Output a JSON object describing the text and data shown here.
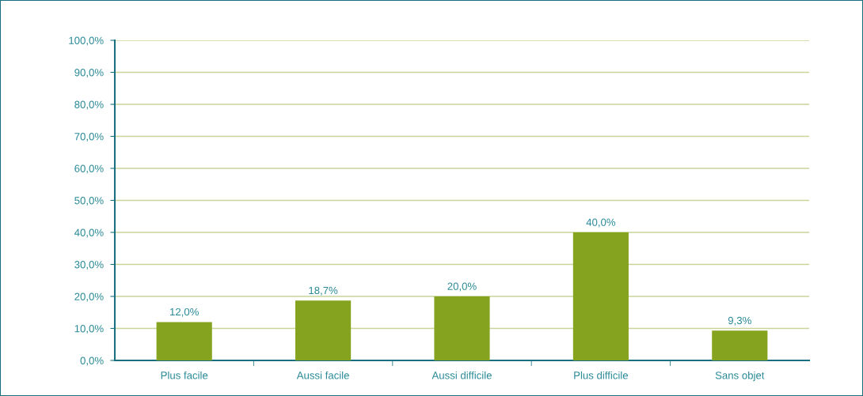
{
  "chart_data": {
    "type": "bar",
    "categories": [
      "Plus facile",
      "Aussi facile",
      "Aussi difficile",
      "Plus difficile",
      "Sans objet"
    ],
    "values": [
      12.0,
      18.7,
      20.0,
      40.0,
      9.3
    ],
    "value_labels": [
      "12,0%",
      "18,7%",
      "20,0%",
      "40,0%",
      "9,3%"
    ],
    "color": "#86a31f",
    "ylim": [
      0,
      100
    ],
    "yticks": [
      {
        "value": 0,
        "label": "0,0%"
      },
      {
        "value": 10,
        "label": "10,0%"
      },
      {
        "value": 20,
        "label": "20,0%"
      },
      {
        "value": 30,
        "label": "30,0%"
      },
      {
        "value": 40,
        "label": "40,0%"
      },
      {
        "value": 50,
        "label": "50,0%"
      },
      {
        "value": 60,
        "label": "60,0%"
      },
      {
        "value": 70,
        "label": "70,0%"
      },
      {
        "value": 80,
        "label": "80,0%"
      },
      {
        "value": 90,
        "label": "90,0%"
      },
      {
        "value": 100,
        "label": "100,0%"
      }
    ],
    "grid": "y",
    "legend": false
  }
}
